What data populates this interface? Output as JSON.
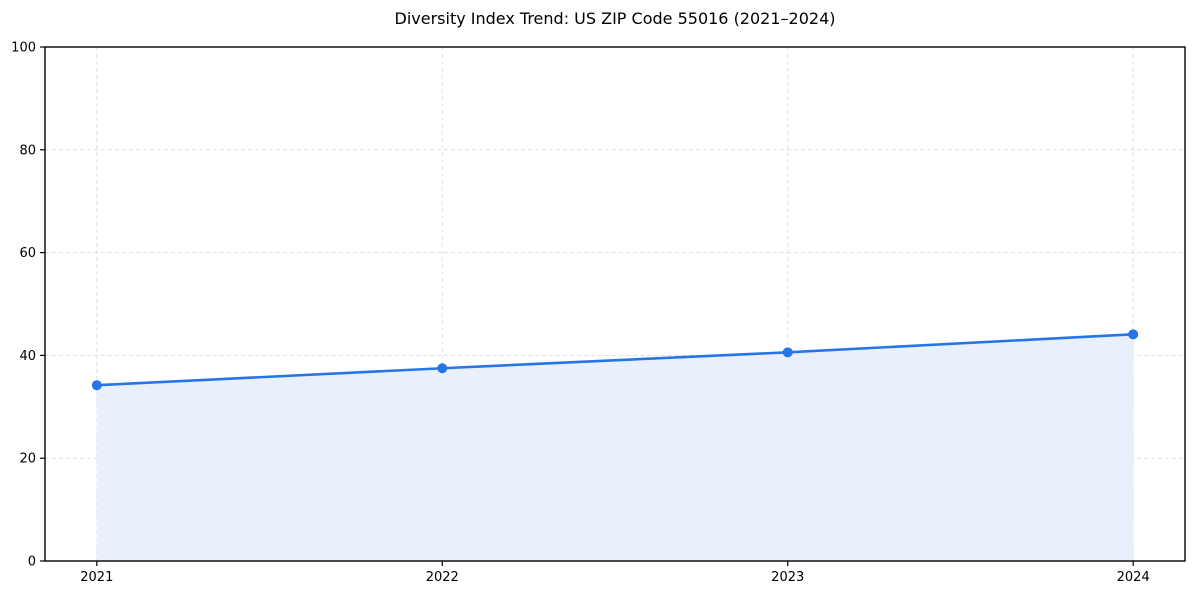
{
  "chart_data": {
    "type": "line",
    "title": "Diversity Index Trend: US ZIP Code 55016 (2021–2024)",
    "x": [
      2021,
      2022,
      2023,
      2024
    ],
    "xtick_labels": [
      "2021",
      "2022",
      "2023",
      "2024"
    ],
    "series": [
      {
        "name": "Diversity Index",
        "values": [
          34.2,
          37.5,
          40.6,
          44.1
        ]
      }
    ],
    "ylim": [
      0,
      100
    ],
    "yticks": [
      0,
      20,
      40,
      60,
      80,
      100
    ],
    "grid": true,
    "grid_style": "dashed",
    "legend": "none",
    "area_fill": true,
    "marker": "circle",
    "colors": {
      "line": "#2575e8",
      "marker": "#2575e8",
      "area_fill": "#e9f0fc",
      "grid": "#dedede",
      "spine": "#000000",
      "tick_label": "#000000",
      "background": "#ffffff"
    }
  }
}
